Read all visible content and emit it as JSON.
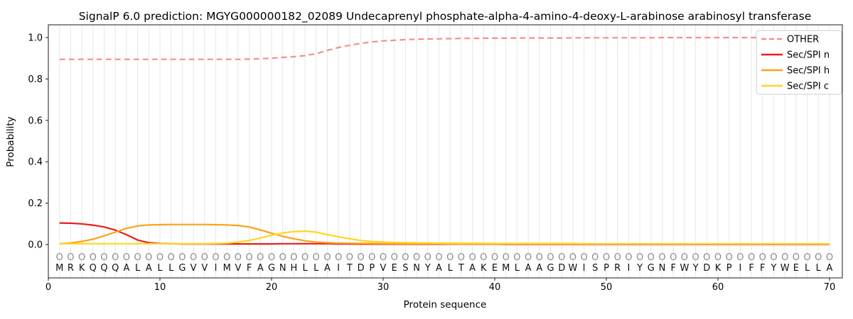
{
  "title": "SignalP 6.0 prediction: MGYG000000182_02089 Undecaprenyl phosphate-alpha-4-amino-4-deoxy-L-arabinose arabinosyl transferase",
  "axes": {
    "xlabel": "Protein sequence",
    "ylabel": "Probability",
    "xticks": [
      0,
      10,
      20,
      30,
      40,
      50,
      60,
      70
    ],
    "yticks": [
      "0.0",
      "0.2",
      "0.4",
      "0.6",
      "0.8",
      "1.0"
    ],
    "grid": "vertical line at every residue position",
    "frame_color": "#1a1a1a",
    "grid_color": "#e7e7e7"
  },
  "sequence": "MRKQQQALALLGVVIMVFAGNHLLAITDPVESNYALTAKEMLAAGDWISPRIYGNFWYDKPIFFYWELLA",
  "position_labels": "OOOOOOOOOOOOOOOOOOOOOOOOOOOOOOOOOOOOOOOOOOOOOOOOOOOOOOOOOOOOOOOOOOOOOO",
  "legend": {
    "position": "upper right",
    "border_color": "#cccccc",
    "background": "#ffffff"
  },
  "chart_data": {
    "type": "line",
    "title": "SignalP 6.0 prediction: MGYG000000182_02089 Undecaprenyl phosphate-alpha-4-amino-4-deoxy-L-arabinose arabinosyl transferase",
    "xlabel": "Protein sequence",
    "ylabel": "Probability",
    "x_range": [
      1,
      70
    ],
    "x_step": 1,
    "ylim": [
      0.0,
      1.0
    ],
    "legend_position": "upper right",
    "series": [
      {
        "name": "OTHER",
        "color": "#f58e8e",
        "dashed": true,
        "values": [
          0.895,
          0.895,
          0.895,
          0.895,
          0.895,
          0.895,
          0.895,
          0.895,
          0.895,
          0.895,
          0.895,
          0.895,
          0.895,
          0.895,
          0.895,
          0.895,
          0.895,
          0.896,
          0.898,
          0.9,
          0.904,
          0.908,
          0.913,
          0.922,
          0.938,
          0.952,
          0.963,
          0.972,
          0.979,
          0.984,
          0.987,
          0.99,
          0.992,
          0.993,
          0.994,
          0.995,
          0.996,
          0.996,
          0.997,
          0.997,
          0.997,
          0.998,
          0.998,
          0.998,
          0.998,
          0.998,
          0.999,
          0.999,
          0.999,
          0.999,
          0.999,
          0.999,
          0.999,
          0.999,
          1.0,
          1.0,
          1.0,
          1.0,
          1.0,
          1.0,
          1.0,
          1.0,
          1.0,
          1.0,
          1.0,
          1.0,
          1.0,
          1.0,
          1.0,
          1.0
        ]
      },
      {
        "name": "Sec/SPI n",
        "color": "#ec1c1c",
        "dashed": false,
        "values": [
          0.104,
          0.103,
          0.1,
          0.094,
          0.085,
          0.07,
          0.048,
          0.022,
          0.009,
          0.005,
          0.004,
          0.003,
          0.003,
          0.003,
          0.003,
          0.003,
          0.003,
          0.003,
          0.003,
          0.003,
          0.004,
          0.004,
          0.004,
          0.004,
          0.004,
          0.003,
          0.003,
          0.002,
          0.002,
          0.002,
          0.002,
          0.002,
          0.002,
          0.002,
          0.002,
          0.002,
          0.002,
          0.002,
          0.002,
          0.002,
          0.001,
          0.001,
          0.001,
          0.001,
          0.001,
          0.001,
          0.001,
          0.001,
          0.001,
          0.001,
          0.001,
          0.001,
          0.001,
          0.001,
          0.001,
          0.001,
          0.001,
          0.001,
          0.001,
          0.001,
          0.001,
          0.001,
          0.001,
          0.001,
          0.001,
          0.001,
          0.001,
          0.001,
          0.001,
          0.001
        ]
      },
      {
        "name": "Sec/SPI h",
        "color": "#ffa116",
        "dashed": false,
        "values": [
          0.004,
          0.008,
          0.015,
          0.026,
          0.042,
          0.06,
          0.078,
          0.09,
          0.095,
          0.096,
          0.097,
          0.097,
          0.097,
          0.097,
          0.096,
          0.095,
          0.092,
          0.085,
          0.071,
          0.055,
          0.04,
          0.028,
          0.018,
          0.012,
          0.009,
          0.007,
          0.006,
          0.005,
          0.005,
          0.004,
          0.004,
          0.004,
          0.004,
          0.004,
          0.004,
          0.003,
          0.003,
          0.003,
          0.003,
          0.003,
          0.003,
          0.003,
          0.003,
          0.003,
          0.003,
          0.003,
          0.003,
          0.003,
          0.003,
          0.003,
          0.003,
          0.003,
          0.003,
          0.003,
          0.003,
          0.003,
          0.003,
          0.003,
          0.003,
          0.003,
          0.003,
          0.003,
          0.003,
          0.003,
          0.003,
          0.003,
          0.003,
          0.003,
          0.003,
          0.002
        ]
      },
      {
        "name": "Sec/SPI c",
        "color": "#ffd71e",
        "dashed": false,
        "values": [
          0.004,
          0.004,
          0.004,
          0.004,
          0.004,
          0.004,
          0.004,
          0.004,
          0.004,
          0.004,
          0.004,
          0.004,
          0.004,
          0.004,
          0.005,
          0.007,
          0.012,
          0.02,
          0.032,
          0.045,
          0.056,
          0.063,
          0.065,
          0.06,
          0.048,
          0.038,
          0.028,
          0.02,
          0.015,
          0.012,
          0.01,
          0.009,
          0.008,
          0.008,
          0.007,
          0.007,
          0.006,
          0.006,
          0.006,
          0.005,
          0.005,
          0.005,
          0.005,
          0.005,
          0.005,
          0.005,
          0.005,
          0.004,
          0.004,
          0.004,
          0.004,
          0.004,
          0.004,
          0.004,
          0.004,
          0.004,
          0.004,
          0.004,
          0.004,
          0.004,
          0.004,
          0.004,
          0.004,
          0.004,
          0.004,
          0.004,
          0.004,
          0.004,
          0.004,
          0.004
        ]
      }
    ]
  }
}
